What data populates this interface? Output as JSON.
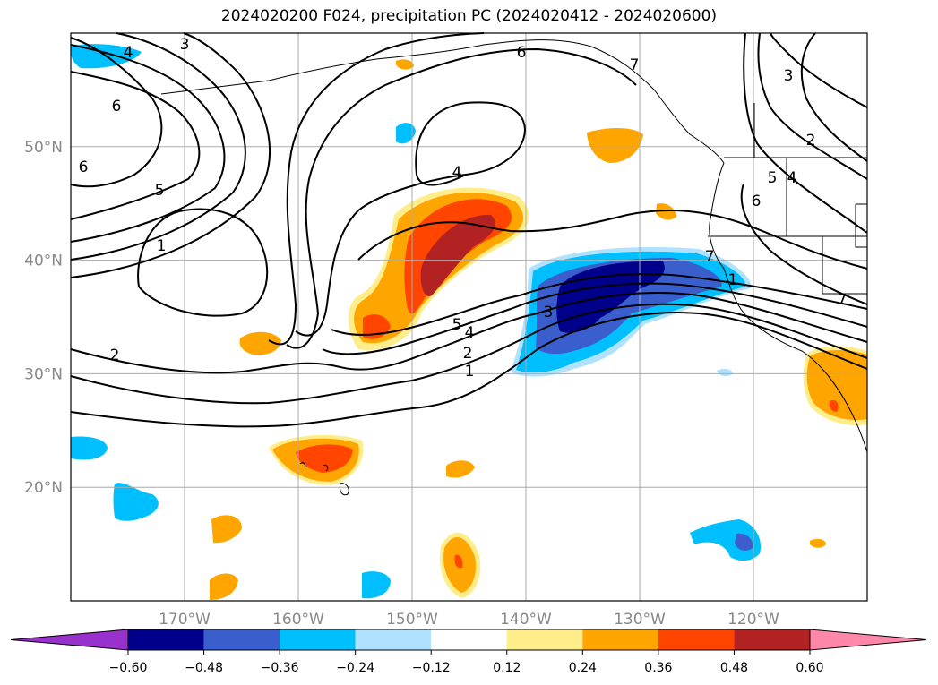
{
  "title": "2024020200 F024, precipitation PC (2024020412 - 2024020600)",
  "map": {
    "lon_range": [
      -180,
      -110
    ],
    "lat_range": [
      10,
      60
    ],
    "lon_ticks": [
      {
        "value": -170,
        "label": "170°W"
      },
      {
        "value": -160,
        "label": "160°W"
      },
      {
        "value": -150,
        "label": "150°W"
      },
      {
        "value": -140,
        "label": "140°W"
      },
      {
        "value": -130,
        "label": "130°W"
      },
      {
        "value": -120,
        "label": "120°W"
      }
    ],
    "lat_ticks": [
      {
        "value": 20,
        "label": "20°N"
      },
      {
        "value": 30,
        "label": "30°N"
      },
      {
        "value": 40,
        "label": "40°N"
      },
      {
        "value": 50,
        "label": "50°N"
      }
    ],
    "grid": true,
    "contour_labels": [
      "4",
      "3",
      "6",
      "7",
      "6",
      "5",
      "1",
      "2",
      "4",
      "5",
      "4",
      "2",
      "1",
      "3",
      "6",
      "7",
      "3",
      "2",
      "4",
      "5",
      "6",
      "7",
      "1"
    ]
  },
  "colorbar": {
    "ticks": [
      "−0.60",
      "−0.48",
      "−0.36",
      "−0.24",
      "−0.12",
      "0.12",
      "0.24",
      "0.36",
      "0.48",
      "0.60"
    ],
    "colors": [
      "#9932CC",
      "#00008B",
      "#3A5FCD",
      "#00BFFF",
      "#B0E2FF",
      "#FFFFFF",
      "#FFEC8B",
      "#FFA500",
      "#FF4500",
      "#B22222",
      "#FF88AA"
    ],
    "extend": "both"
  }
}
